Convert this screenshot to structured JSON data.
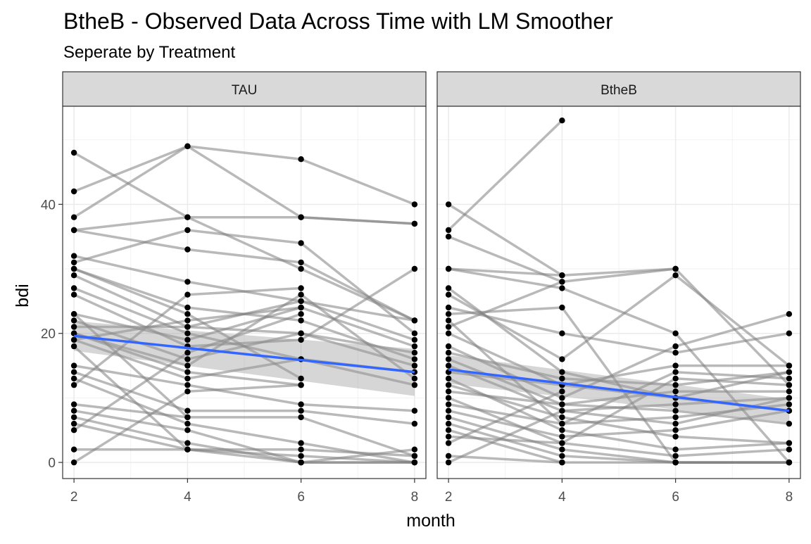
{
  "chart_data": {
    "type": "line",
    "title": "BtheB - Observed Data Across Time with LM Smoother",
    "subtitle": "Seperate by Treatment",
    "xlabel": "month",
    "ylabel": "bdi",
    "xlim": [
      1.8,
      8.2
    ],
    "ylim": [
      -2.5,
      55.2
    ],
    "x_ticks": [
      2,
      4,
      6,
      8
    ],
    "y_ticks": [
      0,
      20,
      40
    ],
    "grid": true,
    "colors": {
      "trajectory": "#808080",
      "point": "#000000",
      "smoother": "#3366FF",
      "ribbon": "#999999",
      "strip": "#D9D9D9"
    },
    "panels": [
      {
        "strip": "TAU",
        "smoother": {
          "x": [
            2,
            8
          ],
          "y": [
            19.6,
            14.0
          ],
          "band_lower": [
            17.3,
            10.3
          ],
          "band_upper": [
            21.9,
            17.6
          ]
        },
        "trajectories": [
          [
            48,
            38,
            30,
            22
          ],
          [
            42,
            49,
            38,
            37
          ],
          [
            38,
            49,
            47,
            40
          ],
          [
            36,
            38,
            38,
            37
          ],
          [
            36,
            33,
            31,
            22
          ],
          [
            32,
            28,
            25,
            22
          ],
          [
            31,
            36,
            34,
            20
          ],
          [
            30,
            24,
            22,
            16
          ],
          [
            29,
            21,
            25,
            19
          ],
          [
            27,
            20,
            16,
            12
          ],
          [
            26,
            18,
            19,
            30
          ],
          [
            23,
            19,
            24,
            18
          ],
          [
            22,
            16,
            20,
            15
          ],
          [
            21,
            21,
            20,
            17
          ],
          [
            20,
            15,
            26,
            13
          ],
          [
            19,
            13,
            16,
            14
          ],
          [
            15,
            12,
            9,
            8
          ],
          [
            14,
            8,
            8,
            6
          ],
          [
            13,
            6,
            3,
            0
          ],
          [
            12,
            26,
            27
          ],
          [
            9,
            7,
            7,
            1
          ],
          [
            8,
            5,
            0,
            0
          ],
          [
            7,
            3,
            0,
            2
          ],
          [
            6,
            2,
            1,
            0
          ],
          [
            5,
            17,
            23
          ],
          [
            2,
            2,
            2,
            1
          ],
          [
            0,
            11,
            12
          ],
          [
            23,
            7
          ],
          [
            30,
            23,
            13
          ],
          [
            18,
            2,
            0,
            0
          ],
          [
            19,
            22,
            24
          ],
          [
            20,
            14,
            12
          ]
        ]
      },
      {
        "strip": "BtheB",
        "smoother": {
          "x": [
            2,
            8
          ],
          "y": [
            14.4,
            8.0
          ],
          "band_lower": [
            12.2,
            6.2
          ],
          "band_upper": [
            16.6,
            9.8
          ]
        },
        "trajectories": [
          [
            36,
            53
          ],
          [
            40,
            29
          ],
          [
            35,
            28
          ],
          [
            30,
            29,
            30,
            12
          ],
          [
            30,
            27,
            20,
            0
          ],
          [
            27,
            14,
            10,
            14
          ],
          [
            26,
            16,
            29,
            15
          ],
          [
            24,
            20,
            17,
            20
          ],
          [
            23,
            24,
            0,
            0
          ],
          [
            20,
            12,
            15,
            15
          ],
          [
            18,
            10,
            18,
            23
          ],
          [
            17,
            13,
            12,
            14
          ],
          [
            16,
            9,
            11,
            11
          ],
          [
            15,
            8,
            9,
            10
          ],
          [
            14,
            12,
            10,
            8
          ],
          [
            13,
            5,
            2,
            3
          ],
          [
            12,
            7,
            4,
            3
          ],
          [
            11,
            9,
            8,
            6
          ],
          [
            10,
            3,
            1,
            2
          ],
          [
            9,
            6,
            7,
            9
          ],
          [
            8,
            4,
            5,
            8
          ],
          [
            7,
            2,
            0,
            0
          ],
          [
            6,
            1,
            0,
            0
          ],
          [
            5,
            0,
            0,
            0
          ],
          [
            4,
            3,
            13,
            12
          ],
          [
            3,
            11
          ],
          [
            1,
            0
          ],
          [
            0,
            8,
            6,
            10
          ],
          [
            22,
            6,
            14,
            13
          ],
          [
            21,
            28,
            30
          ]
        ]
      }
    ]
  }
}
